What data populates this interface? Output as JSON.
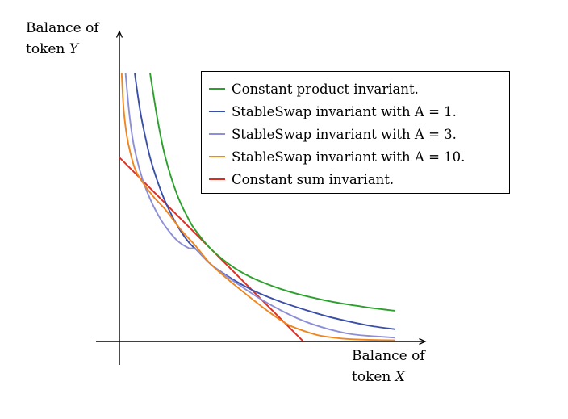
{
  "chart_data": {
    "type": "line",
    "xlabel": {
      "line1": "Balance of",
      "line2_prefix": "token ",
      "line2_symbol": "X"
    },
    "ylabel": {
      "line1": "Balance of",
      "line2_prefix": "token ",
      "line2_symbol": "Y"
    },
    "axis_tick_labels": "none",
    "grid": false,
    "legend_position": "top-right",
    "x_range": [
      0,
      3.9
    ],
    "y_range": [
      0,
      3.9
    ],
    "series": [
      {
        "name": "Constant product invariant.",
        "color": "#2ca02c",
        "x": [
          0.4,
          0.5,
          0.6,
          0.75,
          0.9,
          1.0,
          1.2,
          1.5,
          1.8,
          2.2,
          2.7,
          3.2,
          3.6
        ],
        "y": [
          3.5,
          2.88,
          2.4,
          1.92,
          1.6,
          1.44,
          1.2,
          0.96,
          0.8,
          0.655,
          0.533,
          0.45,
          0.4
        ]
      },
      {
        "name": "StableSwap invariant with A = 1.",
        "color": "#3a4fa8",
        "x": [
          0.2,
          0.25,
          0.3,
          0.4,
          0.5,
          0.6,
          0.75,
          0.9,
          1.0,
          1.2,
          1.4,
          1.6,
          1.8,
          2.1,
          2.4,
          2.7,
          3.0,
          3.3,
          3.6
        ],
        "y": [
          3.5,
          3.14,
          2.85,
          2.4,
          2.08,
          1.82,
          1.52,
          1.3,
          1.2,
          1.0,
          0.86,
          0.74,
          0.64,
          0.52,
          0.42,
          0.33,
          0.26,
          0.2,
          0.16
        ]
      },
      {
        "name": "StableSwap invariant with A = 3.",
        "color": "#8c8fd6",
        "x": [
          0.08,
          0.12,
          0.15,
          0.2,
          0.3,
          0.4,
          0.5,
          0.6,
          0.75,
          0.9,
          1.0,
          1.2,
          1.5,
          1.8,
          2.1,
          2.4,
          2.7,
          3.0,
          3.3,
          3.6
        ],
        "y": [
          3.5,
          3.06,
          2.8,
          2.5,
          2.12,
          1.86,
          1.66,
          1.5,
          1.32,
          1.22,
          1.2,
          1.0,
          0.78,
          0.58,
          0.41,
          0.27,
          0.17,
          0.1,
          0.07,
          0.05
        ]
      },
      {
        "name": "StableSwap invariant with A = 10.",
        "color": "#f0861e",
        "x": [
          0.03,
          0.05,
          0.08,
          0.12,
          0.2,
          0.3,
          0.45,
          0.6,
          0.8,
          1.0,
          1.2,
          1.5,
          1.8,
          2.0,
          2.2,
          2.4,
          2.6,
          2.8,
          3.0,
          3.3,
          3.6
        ],
        "y": [
          3.5,
          3.1,
          2.8,
          2.56,
          2.26,
          2.08,
          1.88,
          1.72,
          1.46,
          1.24,
          1.0,
          0.74,
          0.5,
          0.35,
          0.22,
          0.14,
          0.08,
          0.05,
          0.03,
          0.02,
          0.015
        ]
      },
      {
        "name": "Constant sum invariant.",
        "color": "#d62e22",
        "x": [
          0.0,
          2.4
        ],
        "y": [
          2.4,
          0.0
        ]
      }
    ]
  },
  "legend_entries": [
    {
      "color": "#2ca02c",
      "label": "Constant product invariant."
    },
    {
      "color": "#3a4fa8",
      "label": "StableSwap invariant with A = 1."
    },
    {
      "color": "#8c8fd6",
      "label": "StableSwap invariant with A = 3."
    },
    {
      "color": "#f0861e",
      "label": "StableSwap invariant with A = 10."
    },
    {
      "color": "#d62e22",
      "label": "Constant sum invariant."
    }
  ]
}
